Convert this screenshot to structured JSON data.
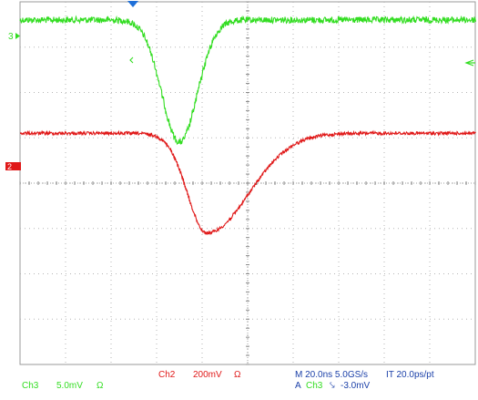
{
  "scope": {
    "grid": {
      "divisions_x": 10,
      "divisions_y": 8
    },
    "channels": [
      {
        "id": "ch3",
        "color": "#33dd22",
        "ref_marker": "3",
        "label": "Ch3",
        "scale": "5.0mV",
        "coupling": "Ω",
        "waveform": {
          "baseline_div": 0.4,
          "noise_div": 0.07,
          "dips": [
            {
              "center_div": 3.5,
              "width_div": 0.55,
              "depth_div": 2.7
            }
          ]
        }
      },
      {
        "id": "ch2",
        "color": "#e01818",
        "ref_marker": "2",
        "label": "Ch2",
        "scale": "200mV",
        "coupling": "Ω",
        "waveform": {
          "baseline_div": 2.9,
          "noise_div": 0.035,
          "dips": [
            {
              "center_div": 4.1,
              "width_left_div": 0.6,
              "width_right_div": 1.3,
              "depth_div": 2.2
            }
          ]
        }
      }
    ],
    "trigger_level_marker": "left-arrow-icon",
    "trigger_position_marker": "down-triangle-icon",
    "status": {
      "timebase": "M 20.0ns 5.0GS/s",
      "interp": "IT 20.0ps/pt",
      "trigger_prefix": "A",
      "trigger_source": "Ch3",
      "trigger_slope_icon": "falling-edge-icon",
      "trigger_slope_glyph": "⤥",
      "trigger_level": "-3.0mV"
    }
  }
}
